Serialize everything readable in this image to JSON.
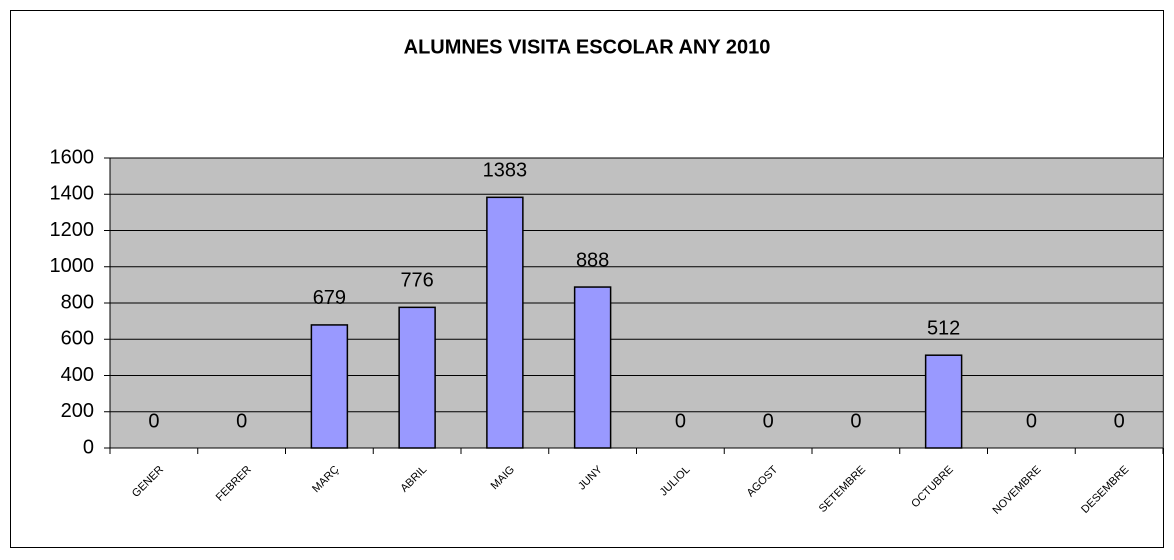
{
  "chart_data": {
    "type": "bar",
    "title": "ALUMNES VISITA ESCOLAR ANY 2010",
    "categories": [
      "GENER",
      "FEBRER",
      "MARÇ",
      "ABRIL",
      "MAIG",
      "JUNY",
      "JULIOL",
      "AGOST",
      "SETEMBRE",
      "OCTUBRE",
      "NOVEMBRE",
      "DESEMBRE"
    ],
    "values": [
      0,
      0,
      679,
      776,
      1383,
      888,
      0,
      0,
      0,
      512,
      0,
      0
    ],
    "color": "#9999ff",
    "ylim": [
      0,
      1600
    ],
    "yticks": [
      0,
      200,
      400,
      600,
      800,
      1000,
      1200,
      1400,
      1600
    ],
    "grid": true
  }
}
